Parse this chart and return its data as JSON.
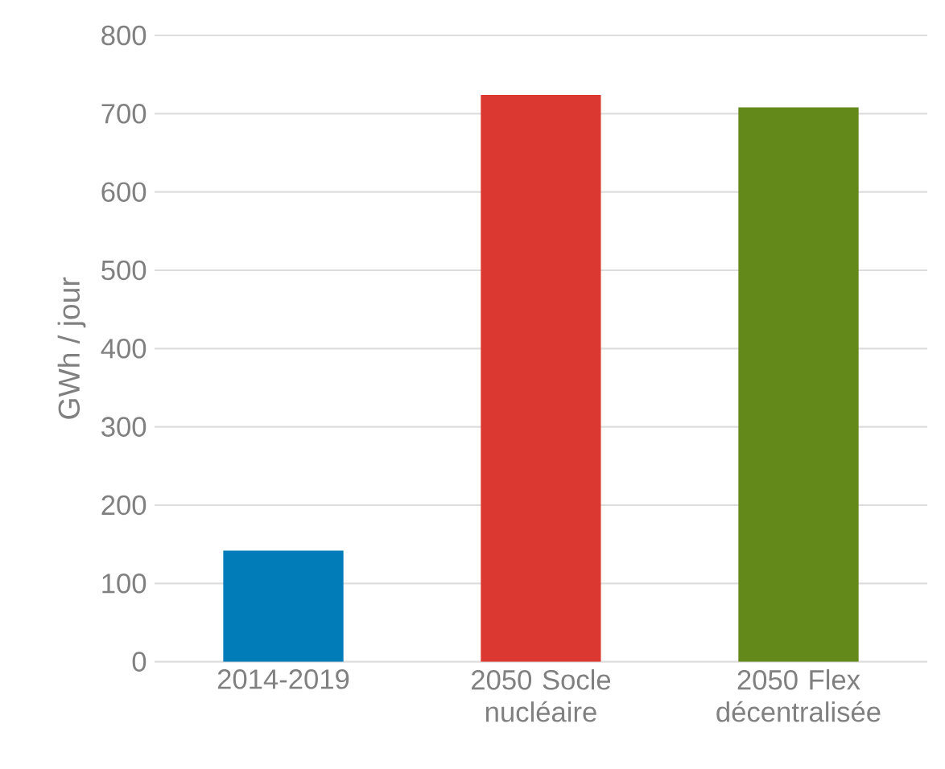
{
  "chart_data": {
    "type": "bar",
    "ylabel": "GWh / jour",
    "categories": [
      "2014-2019",
      "2050 Socle nucléaire",
      "2050 Flex décentralisée"
    ],
    "values": [
      142,
      724,
      708
    ],
    "colors": [
      "#027bb9",
      "#db3832",
      "#63891b"
    ],
    "ylim": [
      0,
      800
    ],
    "yticks": [
      0,
      100,
      200,
      300,
      400,
      500,
      600,
      700,
      800
    ],
    "grid": "y"
  }
}
